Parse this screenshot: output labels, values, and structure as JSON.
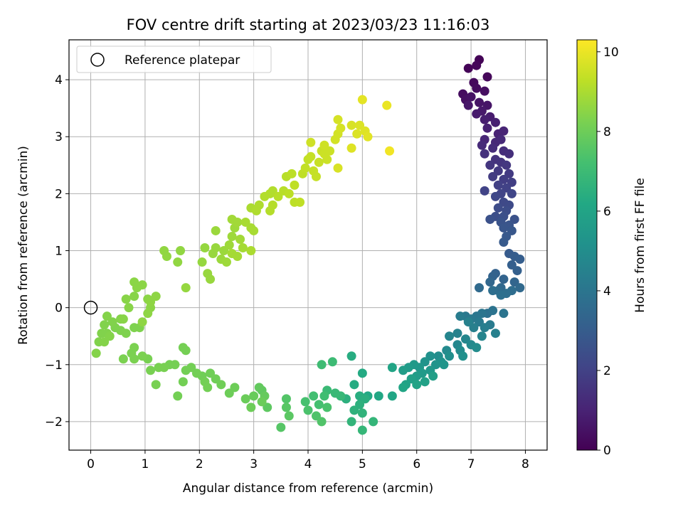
{
  "chart_data": {
    "type": "scatter",
    "title": "FOV centre drift starting at 2023/03/23 11:16:03",
    "xlabel": "Angular distance from reference (arcmin)",
    "ylabel": "Rotation from reference (arcmin)",
    "xlim": [
      -0.4,
      8.4
    ],
    "ylim": [
      -2.5,
      4.7
    ],
    "xticks": [
      0,
      1,
      2,
      3,
      4,
      5,
      6,
      7,
      8
    ],
    "yticks": [
      -2,
      -1,
      0,
      1,
      2,
      3,
      4
    ],
    "grid": true,
    "legend": {
      "placement": "upper-left",
      "entries": [
        "Reference platepar"
      ]
    },
    "reference_point": {
      "x": 0,
      "y": 0
    },
    "colorbar": {
      "label": "Hours from first FF file",
      "range": [
        0,
        10.3
      ],
      "ticks": [
        0,
        2,
        4,
        6,
        8,
        10
      ],
      "colormap": "viridis"
    },
    "points": [
      [
        7.15,
        4.35,
        0.05
      ],
      [
        6.95,
        4.2,
        0.1
      ],
      [
        7.1,
        4.25,
        0.15
      ],
      [
        7.3,
        4.05,
        0.2
      ],
      [
        7.05,
        3.95,
        0.25
      ],
      [
        7.1,
        3.85,
        0.3
      ],
      [
        6.85,
        3.75,
        0.35
      ],
      [
        7.25,
        3.8,
        0.4
      ],
      [
        6.9,
        3.65,
        0.45
      ],
      [
        7.0,
        3.7,
        0.5
      ],
      [
        7.15,
        3.6,
        0.55
      ],
      [
        7.3,
        3.55,
        0.6
      ],
      [
        6.95,
        3.55,
        0.65
      ],
      [
        7.2,
        3.45,
        0.7
      ],
      [
        7.1,
        3.4,
        0.75
      ],
      [
        7.35,
        3.35,
        0.8
      ],
      [
        7.25,
        3.3,
        0.85
      ],
      [
        7.45,
        3.25,
        0.9
      ],
      [
        7.3,
        3.15,
        0.95
      ],
      [
        7.5,
        3.05,
        1.0
      ],
      [
        7.6,
        3.1,
        1.05
      ],
      [
        7.25,
        2.95,
        1.1
      ],
      [
        7.45,
        2.9,
        1.15
      ],
      [
        7.55,
        2.95,
        1.2
      ],
      [
        7.2,
        2.85,
        1.25
      ],
      [
        7.4,
        2.8,
        1.3
      ],
      [
        7.6,
        2.75,
        1.35
      ],
      [
        7.7,
        2.7,
        1.4
      ],
      [
        7.25,
        2.7,
        1.45
      ],
      [
        7.45,
        2.6,
        1.5
      ],
      [
        7.55,
        2.55,
        1.55
      ],
      [
        7.35,
        2.5,
        1.6
      ],
      [
        7.65,
        2.5,
        1.65
      ],
      [
        7.5,
        2.4,
        1.7
      ],
      [
        7.7,
        2.35,
        1.75
      ],
      [
        7.4,
        2.3,
        1.8
      ],
      [
        7.6,
        2.25,
        1.85
      ],
      [
        7.75,
        2.2,
        1.9
      ],
      [
        7.5,
        2.15,
        1.95
      ],
      [
        7.65,
        2.1,
        2.0
      ],
      [
        7.25,
        2.05,
        2.05
      ],
      [
        7.55,
        2.0,
        2.1
      ],
      [
        7.75,
        2.0,
        2.15
      ],
      [
        7.45,
        1.95,
        2.2
      ],
      [
        7.6,
        1.85,
        2.25
      ],
      [
        7.7,
        1.8,
        2.3
      ],
      [
        7.5,
        1.75,
        2.35
      ],
      [
        7.65,
        1.7,
        2.4
      ],
      [
        7.45,
        1.6,
        2.45
      ],
      [
        7.6,
        1.6,
        2.5
      ],
      [
        7.35,
        1.55,
        2.55
      ],
      [
        7.8,
        1.55,
        2.6
      ],
      [
        7.55,
        1.5,
        2.65
      ],
      [
        7.7,
        1.45,
        2.7
      ],
      [
        7.6,
        1.4,
        2.75
      ],
      [
        7.75,
        1.35,
        2.8
      ],
      [
        7.65,
        1.25,
        2.85
      ],
      [
        7.6,
        1.15,
        2.9
      ],
      [
        7.7,
        0.95,
        2.95
      ],
      [
        7.8,
        0.9,
        3.0
      ],
      [
        7.9,
        0.85,
        3.05
      ],
      [
        7.75,
        0.75,
        3.1
      ],
      [
        7.85,
        0.65,
        3.15
      ],
      [
        7.45,
        0.6,
        3.2
      ],
      [
        7.4,
        0.55,
        3.25
      ],
      [
        7.6,
        0.5,
        3.3
      ],
      [
        7.8,
        0.45,
        3.35
      ],
      [
        7.35,
        0.45,
        3.4
      ],
      [
        7.55,
        0.35,
        3.45
      ],
      [
        7.9,
        0.35,
        3.5
      ],
      [
        7.15,
        0.35,
        3.55
      ],
      [
        7.5,
        0.3,
        3.6
      ],
      [
        7.75,
        0.3,
        3.65
      ],
      [
        7.4,
        0.3,
        3.7
      ],
      [
        7.65,
        0.25,
        3.75
      ],
      [
        7.55,
        0.22,
        3.8
      ],
      [
        7.3,
        -0.1,
        3.85
      ],
      [
        7.4,
        -0.05,
        3.9
      ],
      [
        7.6,
        -0.1,
        3.95
      ],
      [
        7.2,
        -0.1,
        4.0
      ],
      [
        7.1,
        -0.15,
        4.05
      ],
      [
        6.9,
        -0.15,
        4.1
      ],
      [
        7.0,
        -0.2,
        4.15
      ],
      [
        7.15,
        -0.25,
        4.2
      ],
      [
        7.35,
        -0.3,
        4.25
      ],
      [
        6.8,
        -0.15,
        4.3
      ],
      [
        7.25,
        -0.35,
        4.35
      ],
      [
        7.05,
        -0.35,
        4.4
      ],
      [
        7.45,
        -0.45,
        4.45
      ],
      [
        6.95,
        -0.25,
        4.5
      ],
      [
        6.75,
        -0.45,
        4.55
      ],
      [
        7.2,
        -0.5,
        4.6
      ],
      [
        6.6,
        -0.5,
        4.65
      ],
      [
        6.9,
        -0.55,
        4.7
      ],
      [
        6.75,
        -0.65,
        4.75
      ],
      [
        7.0,
        -0.65,
        4.8
      ],
      [
        6.55,
        -0.75,
        4.85
      ],
      [
        6.8,
        -0.75,
        4.9
      ],
      [
        7.1,
        -0.7,
        4.95
      ],
      [
        6.4,
        -0.85,
        5.0
      ],
      [
        6.6,
        -0.85,
        5.05
      ],
      [
        6.85,
        -0.85,
        5.1
      ],
      [
        6.25,
        -0.85,
        5.15
      ],
      [
        6.45,
        -0.95,
        5.2
      ],
      [
        6.15,
        -0.95,
        5.25
      ],
      [
        6.35,
        -1.0,
        5.3
      ],
      [
        6.5,
        -1.0,
        5.35
      ],
      [
        6.05,
        -1.05,
        5.4
      ],
      [
        6.25,
        -1.1,
        5.45
      ],
      [
        5.95,
        -1.0,
        5.5
      ],
      [
        6.1,
        -1.15,
        5.55
      ],
      [
        5.85,
        -1.05,
        5.6
      ],
      [
        6.0,
        -1.2,
        5.65
      ],
      [
        5.75,
        -1.1,
        5.7
      ],
      [
        6.3,
        -1.2,
        5.75
      ],
      [
        5.9,
        -1.25,
        5.8
      ],
      [
        6.15,
        -1.3,
        5.85
      ],
      [
        5.8,
        -1.35,
        5.9
      ],
      [
        6.0,
        -1.35,
        5.95
      ],
      [
        5.55,
        -1.05,
        6.0
      ],
      [
        5.75,
        -1.4,
        6.05
      ],
      [
        5.55,
        -1.55,
        6.1
      ],
      [
        5.3,
        -1.55,
        6.15
      ],
      [
        5.1,
        -1.55,
        6.2
      ],
      [
        5.0,
        -1.15,
        6.25
      ],
      [
        4.85,
        -1.35,
        6.3
      ],
      [
        4.8,
        -0.85,
        6.35
      ],
      [
        4.95,
        -1.55,
        6.4
      ],
      [
        5.05,
        -1.6,
        6.45
      ],
      [
        4.7,
        -1.6,
        6.5
      ],
      [
        4.95,
        -1.7,
        6.55
      ],
      [
        4.85,
        -1.8,
        6.6
      ],
      [
        5.0,
        -1.85,
        6.65
      ],
      [
        4.8,
        -2.0,
        6.7
      ],
      [
        5.2,
        -2.0,
        6.75
      ],
      [
        5.0,
        -2.15,
        6.8
      ],
      [
        4.6,
        -1.55,
        6.85
      ],
      [
        4.5,
        -1.5,
        6.9
      ],
      [
        4.35,
        -1.45,
        6.95
      ],
      [
        4.45,
        -0.95,
        7.0
      ],
      [
        4.25,
        -1.0,
        7.05
      ],
      [
        4.3,
        -1.55,
        7.1
      ],
      [
        4.1,
        -1.55,
        7.15
      ],
      [
        4.2,
        -1.7,
        7.2
      ],
      [
        3.95,
        -1.65,
        7.25
      ],
      [
        4.35,
        -1.75,
        7.3
      ],
      [
        4.0,
        -1.8,
        7.35
      ],
      [
        4.15,
        -1.9,
        7.4
      ],
      [
        4.25,
        -2.0,
        7.45
      ],
      [
        3.6,
        -1.6,
        7.5
      ],
      [
        3.5,
        -2.1,
        7.55
      ],
      [
        3.6,
        -1.75,
        7.6
      ],
      [
        3.65,
        -1.9,
        7.65
      ],
      [
        3.25,
        -1.75,
        7.7
      ],
      [
        3.15,
        -1.45,
        7.75
      ],
      [
        3.1,
        -1.4,
        7.8
      ],
      [
        3.2,
        -1.55,
        7.85
      ],
      [
        3.0,
        -1.55,
        7.9
      ],
      [
        2.85,
        -1.6,
        7.95
      ],
      [
        3.15,
        -1.65,
        7.95
      ],
      [
        2.95,
        -1.75,
        8.0
      ],
      [
        2.65,
        -1.4,
        8.0
      ],
      [
        2.55,
        -1.5,
        8.0
      ],
      [
        2.4,
        -1.35,
        8.05
      ],
      [
        2.3,
        -1.25,
        8.05
      ],
      [
        2.2,
        -1.15,
        8.05
      ],
      [
        2.05,
        -1.2,
        8.05
      ],
      [
        1.95,
        -1.15,
        8.1
      ],
      [
        2.1,
        -1.3,
        8.1
      ],
      [
        2.15,
        -1.4,
        8.1
      ],
      [
        1.85,
        -1.05,
        8.1
      ],
      [
        1.75,
        -1.1,
        8.1
      ],
      [
        1.7,
        -1.3,
        8.1
      ],
      [
        1.6,
        -1.55,
        8.1
      ],
      [
        1.7,
        -0.7,
        8.15
      ],
      [
        1.75,
        -0.75,
        8.15
      ],
      [
        1.55,
        -1.0,
        8.15
      ],
      [
        1.45,
        -1.0,
        8.15
      ],
      [
        1.35,
        -1.05,
        8.2
      ],
      [
        1.25,
        -1.05,
        8.2
      ],
      [
        1.2,
        -1.35,
        8.2
      ],
      [
        1.1,
        -1.1,
        8.2
      ],
      [
        1.05,
        -0.9,
        8.2
      ],
      [
        0.95,
        -0.85,
        8.25
      ],
      [
        0.8,
        -0.9,
        8.25
      ],
      [
        0.8,
        -0.7,
        8.25
      ],
      [
        0.75,
        -0.8,
        8.25
      ],
      [
        0.6,
        -0.9,
        8.25
      ],
      [
        0.8,
        -0.35,
        8.3
      ],
      [
        0.9,
        -0.35,
        8.3
      ],
      [
        0.65,
        -0.45,
        8.3
      ],
      [
        0.55,
        -0.4,
        8.3
      ],
      [
        0.45,
        -0.35,
        8.3
      ],
      [
        0.4,
        -0.25,
        8.35
      ],
      [
        0.3,
        -0.45,
        8.35
      ],
      [
        0.25,
        -0.3,
        8.35
      ],
      [
        0.2,
        -0.45,
        8.35
      ],
      [
        0.15,
        -0.6,
        8.35
      ],
      [
        0.1,
        -0.8,
        8.4
      ],
      [
        0.25,
        -0.6,
        8.4
      ],
      [
        0.35,
        -0.5,
        8.4
      ],
      [
        0.3,
        -0.15,
        8.4
      ],
      [
        0.55,
        -0.2,
        8.4
      ],
      [
        0.6,
        -0.2,
        8.45
      ],
      [
        0.7,
        0.0,
        8.45
      ],
      [
        0.65,
        0.15,
        8.45
      ],
      [
        0.8,
        0.2,
        8.45
      ],
      [
        0.85,
        0.35,
        8.5
      ],
      [
        0.8,
        0.45,
        8.5
      ],
      [
        0.95,
        0.4,
        8.5
      ],
      [
        1.05,
        0.15,
        8.5
      ],
      [
        1.1,
        0.0,
        8.5
      ],
      [
        1.05,
        -0.1,
        8.55
      ],
      [
        1.1,
        0.1,
        8.55
      ],
      [
        1.2,
        0.2,
        8.55
      ],
      [
        0.95,
        -0.25,
        8.55
      ],
      [
        1.4,
        0.9,
        8.6
      ],
      [
        1.35,
        1.0,
        8.6
      ],
      [
        1.65,
        1.0,
        8.6
      ],
      [
        1.6,
        0.8,
        8.6
      ],
      [
        1.75,
        0.35,
        8.65
      ],
      [
        2.05,
        0.8,
        8.65
      ],
      [
        2.1,
        1.05,
        8.65
      ],
      [
        2.15,
        0.6,
        8.7
      ],
      [
        2.2,
        0.5,
        8.7
      ],
      [
        2.25,
        0.95,
        8.7
      ],
      [
        2.3,
        1.05,
        8.7
      ],
      [
        2.3,
        1.35,
        8.75
      ],
      [
        2.4,
        0.85,
        8.75
      ],
      [
        2.45,
        1.0,
        8.75
      ],
      [
        2.5,
        0.8,
        8.8
      ],
      [
        2.55,
        1.1,
        8.8
      ],
      [
        2.6,
        1.25,
        8.8
      ],
      [
        2.65,
        1.4,
        8.8
      ],
      [
        2.6,
        1.55,
        8.85
      ],
      [
        2.7,
        1.5,
        8.85
      ],
      [
        2.75,
        1.2,
        8.85
      ],
      [
        2.8,
        1.05,
        8.9
      ],
      [
        2.7,
        0.9,
        8.9
      ],
      [
        2.6,
        0.95,
        8.9
      ],
      [
        2.85,
        1.5,
        8.95
      ],
      [
        2.95,
        1.4,
        8.95
      ],
      [
        3.0,
        1.35,
        8.95
      ],
      [
        2.95,
        1.0,
        9.0
      ],
      [
        2.95,
        1.75,
        9.0
      ],
      [
        3.1,
        1.8,
        9.05
      ],
      [
        3.05,
        1.7,
        9.05
      ],
      [
        3.2,
        1.95,
        9.1
      ],
      [
        3.3,
        2.0,
        9.1
      ],
      [
        3.35,
        2.05,
        9.1
      ],
      [
        3.3,
        1.7,
        9.15
      ],
      [
        3.35,
        1.8,
        9.15
      ],
      [
        3.45,
        1.95,
        9.2
      ],
      [
        3.6,
        2.3,
        9.2
      ],
      [
        3.55,
        2.05,
        9.2
      ],
      [
        3.7,
        2.35,
        9.25
      ],
      [
        3.65,
        2.0,
        9.25
      ],
      [
        3.75,
        1.85,
        9.25
      ],
      [
        3.85,
        1.85,
        9.3
      ],
      [
        3.75,
        2.15,
        9.3
      ],
      [
        3.9,
        2.35,
        9.3
      ],
      [
        3.95,
        2.45,
        9.35
      ],
      [
        4.0,
        2.6,
        9.35
      ],
      [
        4.05,
        2.65,
        9.4
      ],
      [
        4.1,
        2.4,
        9.4
      ],
      [
        4.15,
        2.3,
        9.4
      ],
      [
        4.2,
        2.55,
        9.45
      ],
      [
        4.25,
        2.75,
        9.45
      ],
      [
        4.3,
        2.7,
        9.5
      ],
      [
        4.35,
        2.6,
        9.5
      ],
      [
        4.4,
        2.75,
        9.5
      ],
      [
        4.05,
        2.9,
        9.55
      ],
      [
        4.3,
        2.85,
        9.55
      ],
      [
        4.5,
        2.95,
        9.6
      ],
      [
        4.55,
        3.05,
        9.6
      ],
      [
        4.6,
        3.15,
        9.65
      ],
      [
        4.55,
        3.3,
        9.65
      ],
      [
        4.55,
        2.45,
        9.7
      ],
      [
        4.8,
        3.2,
        9.7
      ],
      [
        4.9,
        3.05,
        9.75
      ],
      [
        4.95,
        3.2,
        9.75
      ],
      [
        4.8,
        2.8,
        9.8
      ],
      [
        5.05,
        3.1,
        9.8
      ],
      [
        5.1,
        3.0,
        9.85
      ],
      [
        5.0,
        3.65,
        9.9
      ],
      [
        5.45,
        3.55,
        10.0
      ],
      [
        5.5,
        2.75,
        10.1
      ]
    ]
  }
}
